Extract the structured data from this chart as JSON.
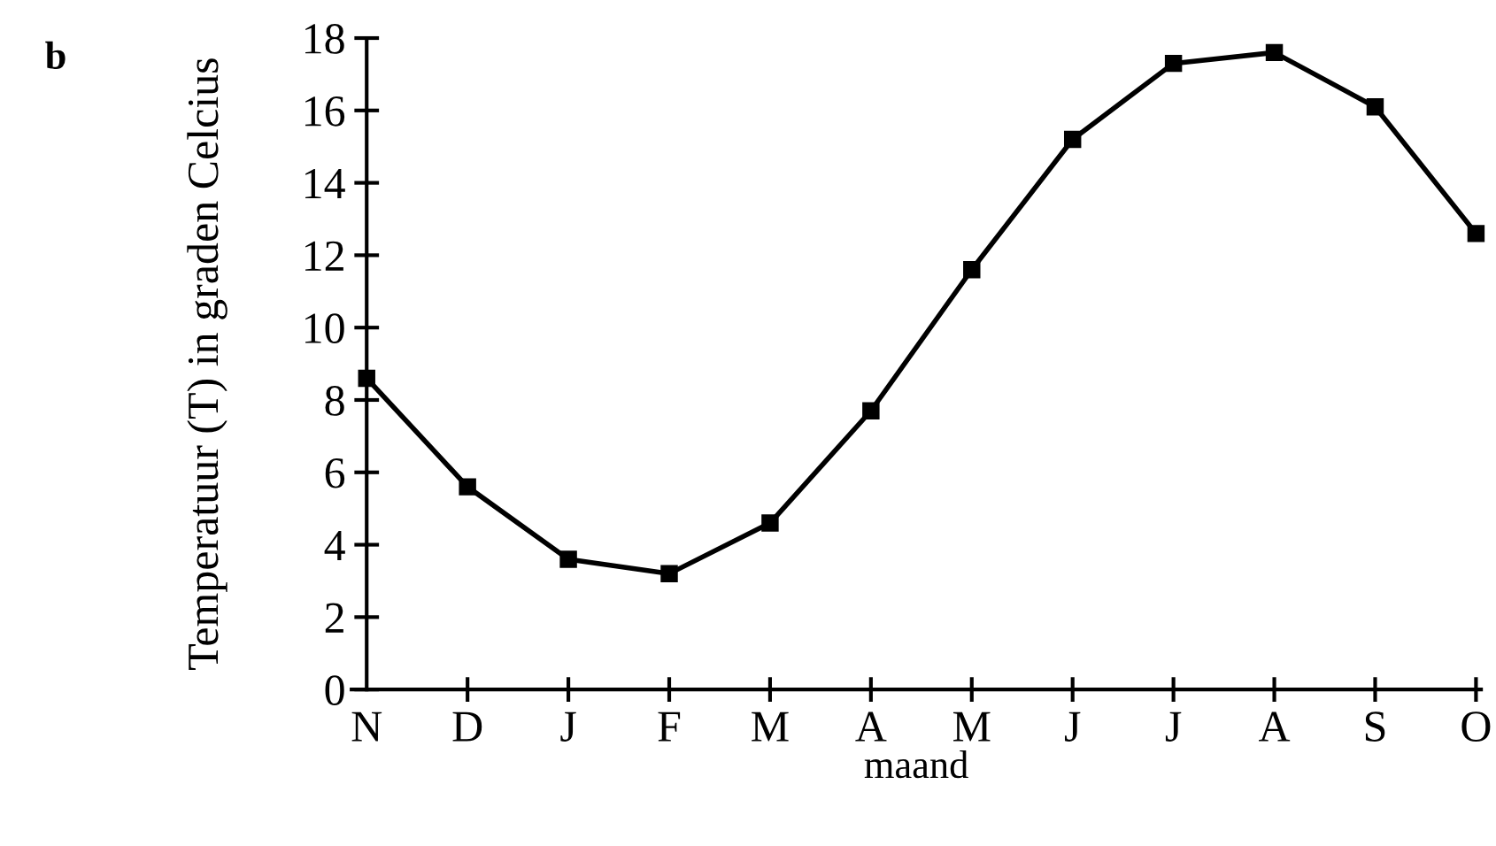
{
  "chart_data": {
    "type": "line",
    "xlabel": "maand",
    "ylabel": "Temperatuur (T) in graden Celcius",
    "annotations": [
      "b"
    ],
    "categories": [
      "N",
      "D",
      "J",
      "F",
      "M",
      "A",
      "M",
      "J",
      "J",
      "A",
      "S",
      "O"
    ],
    "series": [
      {
        "color": "#000000",
        "values": [
          8.6,
          5.6,
          3.6,
          3.2,
          4.6,
          7.7,
          11.6,
          15.2,
          17.3,
          17.6,
          16.1,
          12.6
        ]
      }
    ],
    "ylim": [
      0,
      18
    ],
    "yticks": [
      0,
      2,
      4,
      6,
      8,
      10,
      12,
      14,
      16,
      18
    ],
    "grid": false,
    "legend": false,
    "marker": "square",
    "line_style": "solid"
  }
}
